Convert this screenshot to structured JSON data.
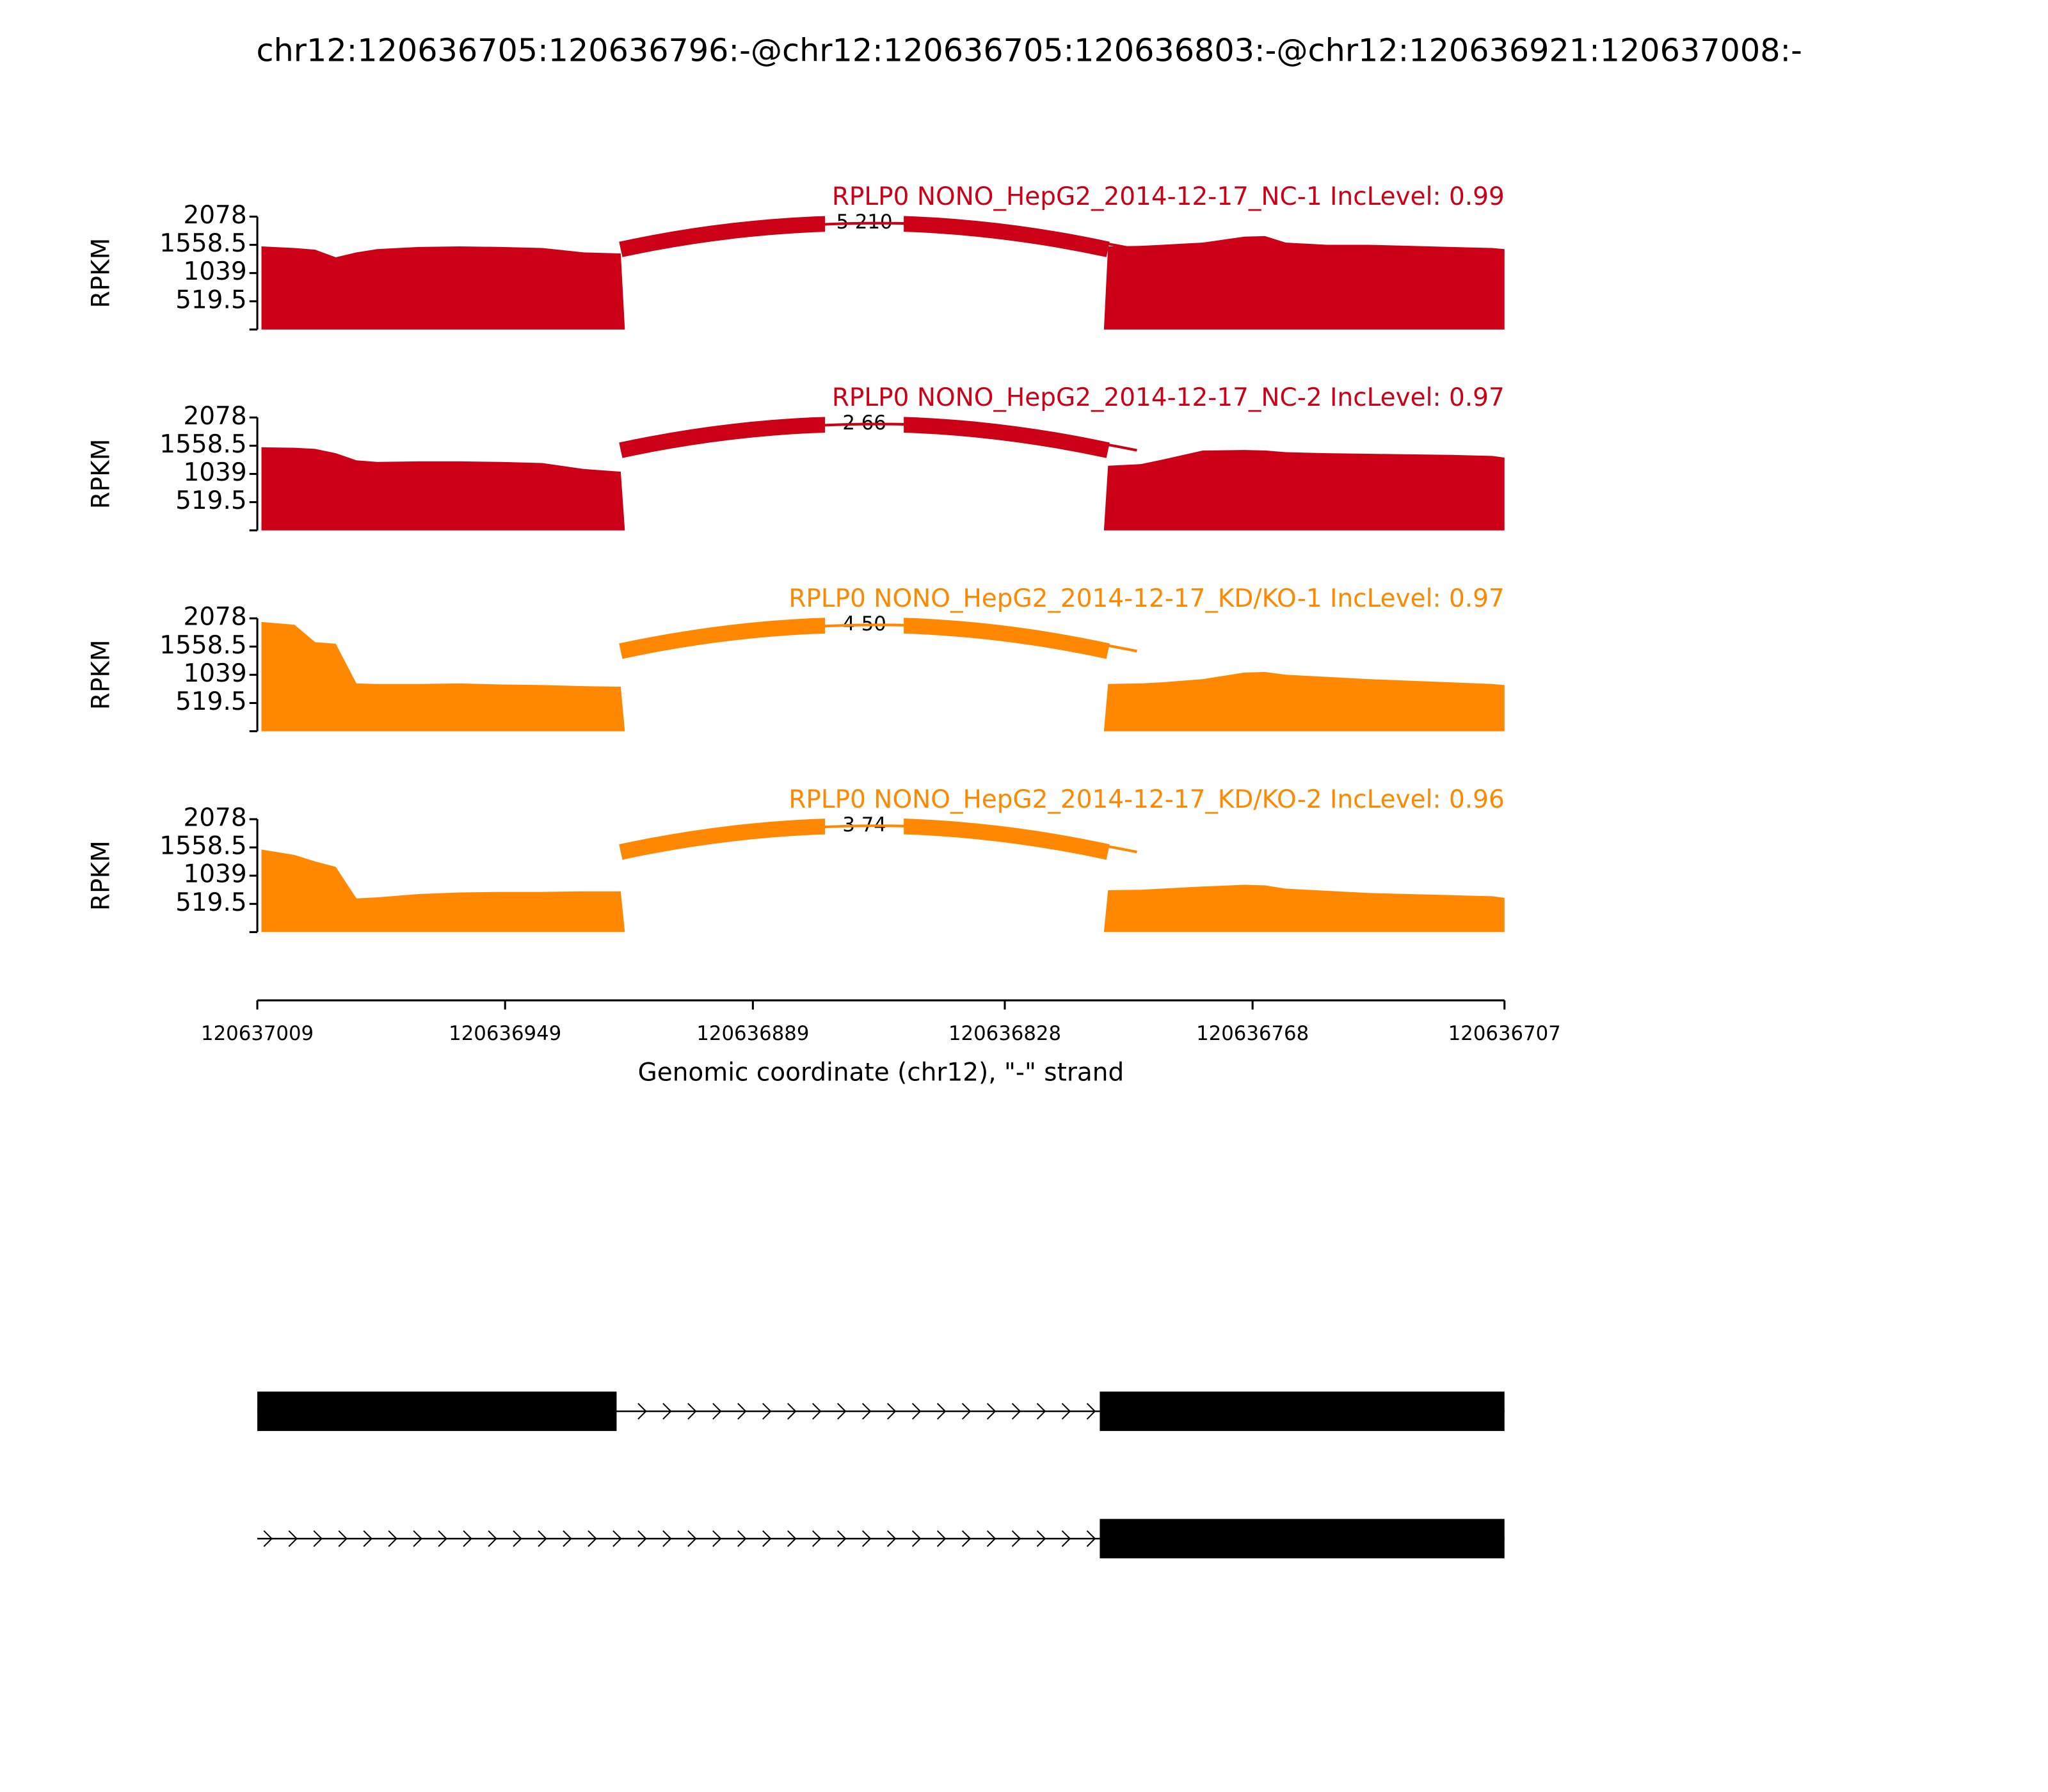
{
  "chart_data": {
    "type": "sashimi",
    "title": "chr12:120636705:120636796:-@chr12:120636705:120636803:-@chr12:120636921:120637008:-",
    "xlabel": "Genomic coordinate (chr12), \"-\" strand",
    "xlim": [
      120637009,
      120636707
    ],
    "xticks": [
      120637009,
      120636949,
      120636889,
      120636828,
      120636768,
      120636707
    ],
    "x": [
      120637008,
      120637000,
      120636995,
      120636990,
      120636985,
      120636980,
      120636970,
      120636960,
      120636950,
      120636940,
      120636930,
      120636921,
      120636920,
      120636804,
      120636803,
      120636795,
      120636790,
      120636780,
      120636770,
      120636765,
      120636760,
      120636750,
      120636740,
      120636730,
      120636720,
      120636710,
      120636707
    ],
    "panels": [
      {
        "name": "RPLP0 NONO_HepG2_2014-12-17_NC-1 IncLevel: 0.99",
        "color": "#cc0016",
        "ylabel": "RPKM",
        "ylim": [
          0,
          2078
        ],
        "yticks": [
          519.5,
          1039,
          1558.5,
          2078
        ],
        "values": [
          1530,
          1500,
          1470,
          1330,
          1420,
          1480,
          1520,
          1530,
          1520,
          1500,
          1420,
          1400,
          0,
          0,
          1530,
          1540,
          1560,
          1600,
          1710,
          1720,
          1600,
          1560,
          1560,
          1540,
          1520,
          1500,
          1480
        ],
        "junctions": [
          {
            "start": 120636921,
            "end": 120636803,
            "label": "5 210"
          },
          {
            "start": 120636921,
            "end": 120636796
          }
        ]
      },
      {
        "name": "RPLP0 NONO_HepG2_2014-12-17_NC-2 IncLevel: 0.97",
        "color": "#cc0016",
        "ylabel": "RPKM",
        "ylim": [
          0,
          2078
        ],
        "yticks": [
          519.5,
          1039,
          1558.5,
          2078
        ],
        "values": [
          1530,
          1520,
          1500,
          1420,
          1290,
          1260,
          1270,
          1270,
          1260,
          1240,
          1130,
          1080,
          0,
          0,
          1190,
          1220,
          1300,
          1470,
          1480,
          1470,
          1440,
          1420,
          1410,
          1400,
          1390,
          1370,
          1340
        ],
        "junctions": [
          {
            "start": 120636921,
            "end": 120636803,
            "label": "2 66"
          },
          {
            "start": 120636921,
            "end": 120636796
          }
        ]
      },
      {
        "name": "RPLP0 NONO_HepG2_2014-12-17_KD/KO-1 IncLevel: 0.97",
        "color": "#ff8800",
        "ylabel": "RPKM",
        "ylim": [
          0,
          2078
        ],
        "yticks": [
          519.5,
          1039,
          1558.5,
          2078
        ],
        "values": [
          2010,
          1960,
          1640,
          1610,
          880,
          870,
          870,
          880,
          860,
          850,
          830,
          820,
          0,
          0,
          870,
          880,
          900,
          960,
          1080,
          1090,
          1040,
          1000,
          960,
          930,
          900,
          870,
          850
        ],
        "junctions": [
          {
            "start": 120636921,
            "end": 120636803,
            "label": "4 50"
          },
          {
            "start": 120636921,
            "end": 120636796
          }
        ]
      },
      {
        "name": "RPLP0 NONO_HepG2_2014-12-17_KD/KO-2 IncLevel: 0.96",
        "color": "#ff8800",
        "ylabel": "RPKM",
        "ylim": [
          0,
          2078
        ],
        "yticks": [
          519.5,
          1039,
          1558.5,
          2078
        ],
        "values": [
          1520,
          1420,
          1300,
          1200,
          620,
          640,
          700,
          730,
          740,
          740,
          750,
          750,
          0,
          0,
          770,
          780,
          800,
          840,
          870,
          860,
          800,
          760,
          720,
          700,
          680,
          660,
          630
        ],
        "junctions": [
          {
            "start": 120636921,
            "end": 120636803,
            "label": "3 74"
          },
          {
            "start": 120636921,
            "end": 120636796
          }
        ]
      }
    ],
    "isoforms": [
      {
        "span": [
          120637009,
          120636707
        ],
        "exons": [
          [
            120637009,
            120636922
          ],
          [
            120636805,
            120636707
          ]
        ]
      },
      {
        "span": [
          120637009,
          120636707
        ],
        "exons": [
          [
            120636805,
            120636707
          ]
        ]
      }
    ]
  }
}
